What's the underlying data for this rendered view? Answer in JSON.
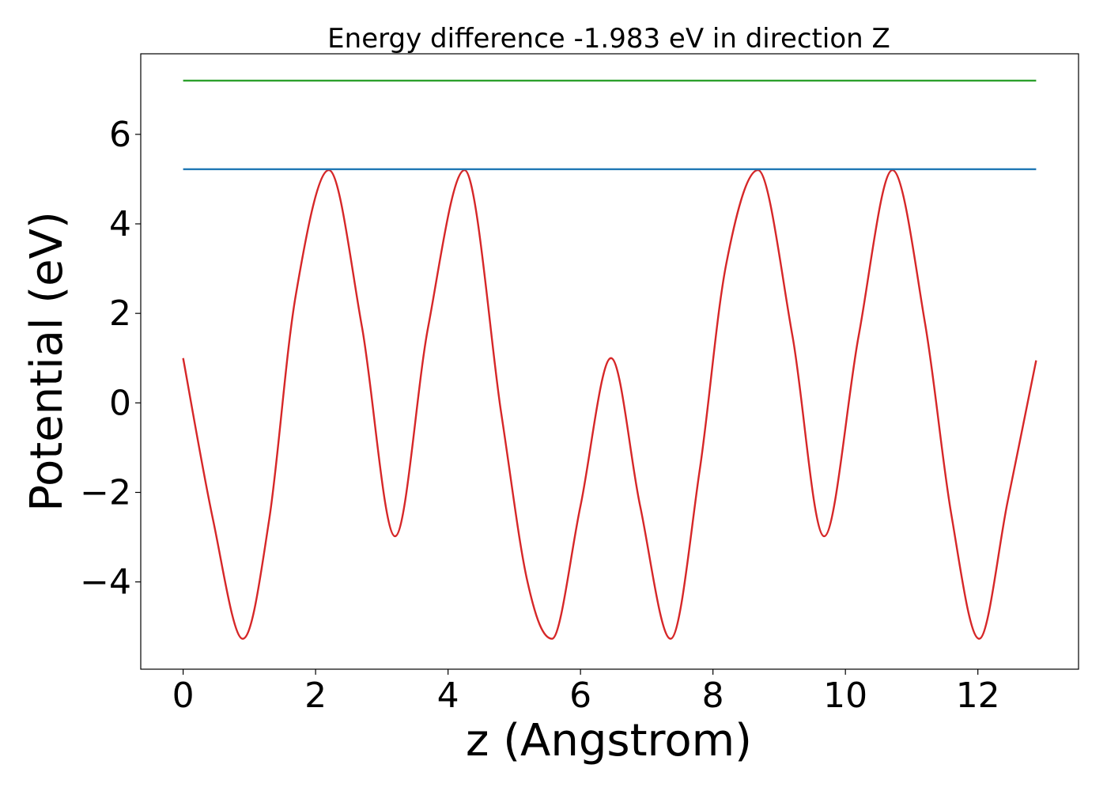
{
  "chart_data": {
    "type": "line",
    "title": "Energy difference -1.983 eV in direction Z",
    "xlabel": "z (Angstrom)",
    "ylabel": "Potential (eV)",
    "xlim": [
      -0.64,
      13.52
    ],
    "ylim": [
      -5.95,
      7.8
    ],
    "xticks": [
      0,
      2,
      4,
      6,
      8,
      10,
      12
    ],
    "xtick_labels": [
      "0",
      "2",
      "4",
      "6",
      "8",
      "10",
      "12"
    ],
    "yticks": [
      -4,
      -2,
      0,
      2,
      4,
      6
    ],
    "ytick_labels": [
      "−4",
      "−2",
      "0",
      "2",
      "4",
      "6"
    ],
    "grid": false,
    "legend": "none",
    "series": [
      {
        "color": "#d62728",
        "x": [
          0.0,
          0.45,
          0.9,
          1.3,
          1.7,
          2.2,
          2.7,
          3.2,
          3.7,
          4.25,
          4.8,
          5.2,
          5.57,
          6.0,
          6.46,
          6.9,
          7.36,
          7.8,
          8.2,
          8.68,
          9.2,
          9.68,
          10.2,
          10.71,
          11.2,
          11.6,
          12.02,
          12.45,
          12.88
        ],
        "y": [
          1.0,
          -2.6,
          -5.27,
          -2.6,
          2.4,
          5.2,
          1.7,
          -2.98,
          1.7,
          5.2,
          -0.2,
          -4.0,
          -5.27,
          -2.3,
          1.0,
          -2.3,
          -5.27,
          -1.5,
          3.1,
          5.2,
          1.5,
          -2.98,
          1.5,
          5.2,
          1.8,
          -2.5,
          -5.27,
          -2.2,
          0.95
        ]
      },
      {
        "color": "#1f77b4",
        "x": [
          0.0,
          12.88
        ],
        "y": [
          5.22,
          5.22
        ]
      },
      {
        "color": "#2ca02c",
        "x": [
          0.0,
          12.88
        ],
        "y": [
          7.2,
          7.2
        ]
      }
    ]
  }
}
